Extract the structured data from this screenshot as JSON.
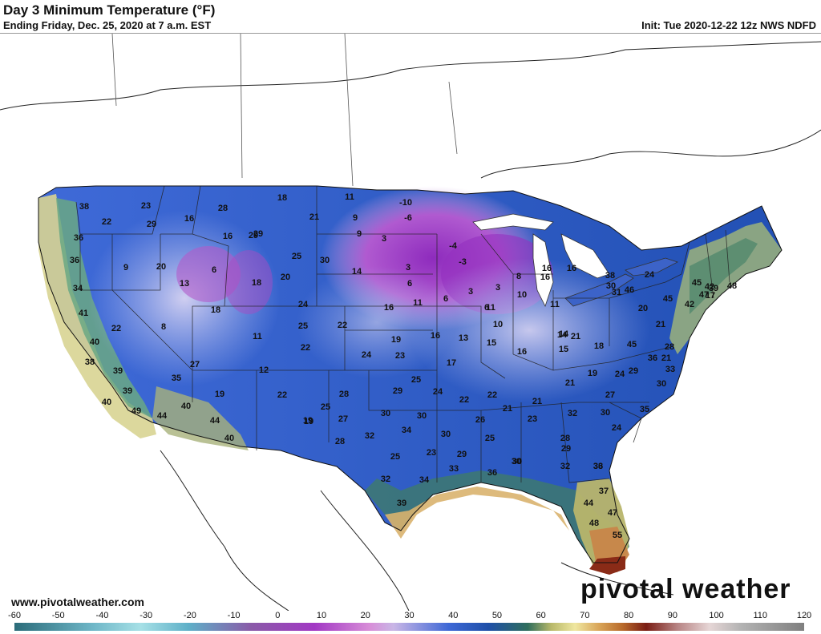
{
  "header": {
    "title": "Day 3 Minimum Temperature (°F)",
    "subtitle": "Ending Friday, Dec. 25, 2020 at 7 a.m. EST",
    "init": "Init: Tue 2020-12-22 12z NWS NDFD"
  },
  "footer": {
    "url": "www.pivotalweather.com",
    "brand": "pivotal weather"
  },
  "colorbar": {
    "ticks": [
      "-60",
      "-50",
      "-40",
      "-30",
      "-20",
      "-10",
      "0",
      "10",
      "20",
      "30",
      "40",
      "50",
      "60",
      "70",
      "80",
      "90",
      "100",
      "110",
      "120"
    ]
  },
  "temperatures": [
    {
      "v": "38"
    },
    {
      "v": "22"
    },
    {
      "v": "23"
    },
    {
      "v": "16"
    },
    {
      "v": "28"
    },
    {
      "v": "18"
    },
    {
      "v": "11"
    },
    {
      "v": "-10"
    },
    {
      "v": "29"
    },
    {
      "v": "21"
    },
    {
      "v": "9"
    },
    {
      "v": "-6"
    },
    {
      "v": "36"
    },
    {
      "v": "29"
    },
    {
      "v": "16"
    },
    {
      "v": "29"
    },
    {
      "v": "3"
    },
    {
      "v": "-4"
    },
    {
      "v": "9"
    },
    {
      "v": "25"
    },
    {
      "v": "30"
    },
    {
      "v": "-3"
    },
    {
      "v": "36"
    },
    {
      "v": "9"
    },
    {
      "v": "20"
    },
    {
      "v": "6"
    },
    {
      "v": "14"
    },
    {
      "v": "3"
    },
    {
      "v": "16"
    },
    {
      "v": "16"
    },
    {
      "v": "13"
    },
    {
      "v": "18"
    },
    {
      "v": "20"
    },
    {
      "v": "6"
    },
    {
      "v": "3"
    },
    {
      "v": "3"
    },
    {
      "v": "10"
    },
    {
      "v": "8"
    },
    {
      "v": "34"
    },
    {
      "v": "24"
    },
    {
      "v": "16"
    },
    {
      "v": "11"
    },
    {
      "v": "6"
    },
    {
      "v": "11"
    },
    {
      "v": "18"
    },
    {
      "v": "6"
    },
    {
      "v": "10"
    },
    {
      "v": "11"
    },
    {
      "v": "41"
    },
    {
      "v": "22"
    },
    {
      "v": "8"
    },
    {
      "v": "11"
    },
    {
      "v": "25"
    },
    {
      "v": "22"
    },
    {
      "v": "19"
    },
    {
      "v": "16"
    },
    {
      "v": "13"
    },
    {
      "v": "15"
    },
    {
      "v": "14"
    },
    {
      "v": "14"
    },
    {
      "v": "15"
    },
    {
      "v": "40"
    },
    {
      "v": "22"
    },
    {
      "v": "24"
    },
    {
      "v": "23"
    },
    {
      "v": "16"
    },
    {
      "v": "18"
    },
    {
      "v": "38"
    },
    {
      "v": "27"
    },
    {
      "v": "12"
    },
    {
      "v": "17"
    },
    {
      "v": "39"
    },
    {
      "v": "35"
    },
    {
      "v": "25"
    },
    {
      "v": "24"
    },
    {
      "v": "19"
    },
    {
      "v": "21"
    },
    {
      "v": "19"
    },
    {
      "v": "39"
    },
    {
      "v": "19"
    },
    {
      "v": "22"
    },
    {
      "v": "28"
    },
    {
      "v": "29"
    },
    {
      "v": "22"
    },
    {
      "v": "22"
    },
    {
      "v": "21"
    },
    {
      "v": "40"
    },
    {
      "v": "49"
    },
    {
      "v": "40"
    },
    {
      "v": "25"
    },
    {
      "v": "30"
    },
    {
      "v": "30"
    },
    {
      "v": "26"
    },
    {
      "v": "21"
    },
    {
      "v": "44"
    },
    {
      "v": "44"
    },
    {
      "v": "19"
    },
    {
      "v": "27"
    },
    {
      "v": "34"
    },
    {
      "v": "30"
    },
    {
      "v": "25"
    },
    {
      "v": "23"
    },
    {
      "v": "40"
    },
    {
      "v": "28"
    },
    {
      "v": "32"
    },
    {
      "v": "29"
    },
    {
      "v": "30"
    },
    {
      "v": "25"
    },
    {
      "v": "23"
    },
    {
      "v": "33"
    },
    {
      "v": "32"
    },
    {
      "v": "34"
    },
    {
      "v": "36"
    },
    {
      "v": "39"
    },
    {
      "v": "38"
    },
    {
      "v": "30"
    },
    {
      "v": "42"
    },
    {
      "v": "48"
    },
    {
      "v": "45"
    },
    {
      "v": "47"
    },
    {
      "v": "39"
    },
    {
      "v": "42"
    },
    {
      "v": "45"
    },
    {
      "v": "24"
    },
    {
      "v": "31"
    },
    {
      "v": "46"
    },
    {
      "v": "20"
    },
    {
      "v": "17"
    },
    {
      "v": "21"
    },
    {
      "v": "45"
    },
    {
      "v": "28"
    },
    {
      "v": "21"
    },
    {
      "v": "33"
    },
    {
      "v": "30"
    },
    {
      "v": "36"
    },
    {
      "v": "29"
    },
    {
      "v": "27"
    },
    {
      "v": "35"
    },
    {
      "v": "24"
    },
    {
      "v": "21"
    },
    {
      "v": "30"
    },
    {
      "v": "32"
    },
    {
      "v": "24"
    },
    {
      "v": "28"
    },
    {
      "v": "33"
    },
    {
      "v": "29"
    },
    {
      "v": "32"
    },
    {
      "v": "36"
    },
    {
      "v": "37"
    },
    {
      "v": "44"
    },
    {
      "v": "47"
    },
    {
      "v": "48"
    },
    {
      "v": "55"
    },
    {
      "v": "30"
    },
    {
      "v": "16"
    }
  ]
}
